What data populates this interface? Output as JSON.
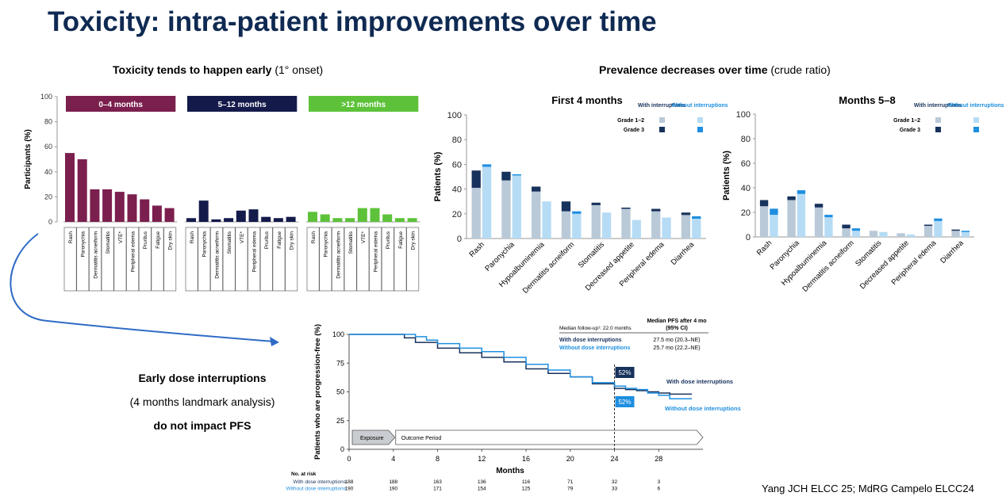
{
  "slide_title": "Toxicity: intra-patient improvements over time",
  "left_heading": {
    "bold": "Toxicity tends to happen early",
    "normal": " (1° onset)"
  },
  "right_heading": {
    "bold": "Prevalence decreases over time",
    "normal": " (crude ratio)"
  },
  "left_text": {
    "line1": "Early dose interruptions",
    "line2": "(4 months landmark analysis)",
    "line3": "do not impact PFS"
  },
  "reference": "Yang JCH ELCC 25; MdRG Campelo ELCC24",
  "chart_data": [
    {
      "type": "bar",
      "ylabel": "Participants (%)",
      "ylim": [
        0,
        100
      ],
      "yticks": [
        0,
        20,
        40,
        60,
        80,
        100
      ],
      "categories": [
        "Rash",
        "Paronychia",
        "Dermatitis acneiform",
        "Stomatitis",
        "VTE*",
        "Peripheral edema",
        "Pruritus",
        "Fatigue",
        "Dry skin"
      ],
      "groups": [
        {
          "name": "0–4 months",
          "color": "#7b1f4e",
          "values": [
            55,
            50,
            26,
            26,
            24,
            22,
            18,
            13,
            11
          ]
        },
        {
          "name": "5–12 months",
          "color": "#141a4a",
          "values": [
            3,
            17,
            2,
            3,
            9,
            10,
            4,
            3,
            4
          ]
        },
        {
          "name": ">12 months",
          "color": "#5dc23a",
          "values": [
            8,
            6,
            3,
            3,
            11,
            11,
            6,
            3,
            3
          ]
        }
      ]
    },
    {
      "type": "bar",
      "title": "First 4 months",
      "ylabel": "Patients (%)",
      "ylim": [
        0,
        100
      ],
      "yticks": [
        0,
        20,
        40,
        60,
        80,
        100
      ],
      "categories": [
        "Rash",
        "Paronychia",
        "Hypoalbuminemia",
        "Dermatitis acneiform",
        "Stomatitis",
        "Decreased appetite",
        "Peripheral edema",
        "Diarrhea"
      ],
      "legend": {
        "col1": "With interruptions",
        "col2": "Without interruptions",
        "row1": "Grade 1–2",
        "row2": "Grade 3"
      },
      "series": [
        {
          "name": "With interruptions Grade 1–2",
          "color": "#b9c9d8",
          "values": [
            41,
            47,
            38,
            22,
            27,
            24,
            22,
            19
          ]
        },
        {
          "name": "With interruptions Grade 3",
          "color": "#17325c",
          "values": [
            14,
            7,
            4,
            8,
            2,
            1,
            2,
            2
          ]
        },
        {
          "name": "Without interruptions Grade 1–2",
          "color": "#b6dcf5",
          "values": [
            58,
            51,
            30,
            20,
            21,
            15,
            17,
            16
          ]
        },
        {
          "name": "Without interruptions Grade 3",
          "color": "#1e8fe0",
          "values": [
            2,
            1,
            0,
            2,
            0,
            0,
            0,
            2
          ]
        }
      ]
    },
    {
      "type": "bar",
      "title": "Months 5–8",
      "ylabel": "Patients (%)",
      "ylim": [
        0,
        100
      ],
      "yticks": [
        0,
        20,
        40,
        60,
        80,
        100
      ],
      "categories": [
        "Rash",
        "Paronychia",
        "Hypoalbuminemia",
        "Dermatitis acneiform",
        "Stomatitis",
        "Decreased appetite",
        "Peripheral edema",
        "Diarrhea"
      ],
      "legend": {
        "col1": "With interruptions",
        "col2": "Without interruptions",
        "row1": "Grade 1–2",
        "row2": "Grade 3"
      },
      "series": [
        {
          "name": "With interruptions Grade 1–2",
          "color": "#b9c9d8",
          "values": [
            25,
            30,
            24,
            7,
            5,
            3,
            9,
            5
          ]
        },
        {
          "name": "With interruptions Grade 3",
          "color": "#17325c",
          "values": [
            5,
            3,
            3,
            3,
            0,
            0,
            1,
            1
          ]
        },
        {
          "name": "Without interruptions Grade 1–2",
          "color": "#b6dcf5",
          "values": [
            18,
            35,
            16,
            5,
            4,
            2,
            13,
            4
          ]
        },
        {
          "name": "Without interruptions Grade 3",
          "color": "#1e8fe0",
          "values": [
            5,
            3,
            2,
            2,
            0,
            0,
            2,
            1
          ]
        }
      ]
    },
    {
      "type": "line",
      "ylabel": "Patients who are progression-free (%)",
      "xlabel": "Months",
      "xlim": [
        0,
        32
      ],
      "ylim": [
        0,
        100
      ],
      "xticks": [
        0,
        4,
        8,
        12,
        16,
        20,
        24,
        28
      ],
      "yticks": [
        0,
        25,
        50,
        75,
        100
      ],
      "phases": {
        "exposure": "Exposure",
        "outcome": "Outcome Period"
      },
      "landmark_month": 24,
      "series": [
        {
          "name": "With dose interruptions",
          "color": "#17325c",
          "label_value": "52%",
          "x": [
            0,
            4,
            5,
            6,
            8,
            10,
            12,
            14,
            16,
            18,
            20,
            22,
            24,
            25,
            26,
            27,
            28,
            29,
            31
          ],
          "y": [
            100,
            100,
            97,
            93,
            88,
            84,
            80,
            76,
            70,
            66,
            63,
            57,
            53,
            52,
            51,
            50,
            49,
            48,
            48
          ]
        },
        {
          "name": "Without dose interruptions",
          "color": "#1e8fe0",
          "label_value": "52%",
          "x": [
            0,
            4,
            6,
            7,
            8,
            10,
            12,
            14,
            16,
            18,
            20,
            22,
            24,
            25,
            26,
            27,
            28,
            29,
            31
          ],
          "y": [
            100,
            100,
            98,
            95,
            92,
            88,
            85,
            80,
            74,
            69,
            63,
            58,
            55,
            53,
            52,
            49,
            47,
            44,
            44
          ]
        }
      ],
      "median_table": {
        "header_left": "Median follow-up¹: 22.0 months",
        "header_right_line1": "Median PFS after 4 mo",
        "header_right_line2": "(95% CI)",
        "rows": [
          {
            "label": "With dose interruptions",
            "value": "27.5 mo (20.3–NE)"
          },
          {
            "label": "Without dose interruptions",
            "value": "25.7 mo (22.2–NE)"
          }
        ]
      },
      "risk_table": {
        "title": "No. at risk",
        "rows": [
          {
            "label": "With dose interruptions",
            "values": [
              "188",
              "188",
              "163",
              "136",
              "116",
              "71",
              "32",
              "3"
            ]
          },
          {
            "label": "Without dose interruptions",
            "values": [
              "190",
              "190",
              "171",
              "154",
              "125",
              "79",
              "33",
              "6"
            ]
          }
        ]
      }
    }
  ]
}
